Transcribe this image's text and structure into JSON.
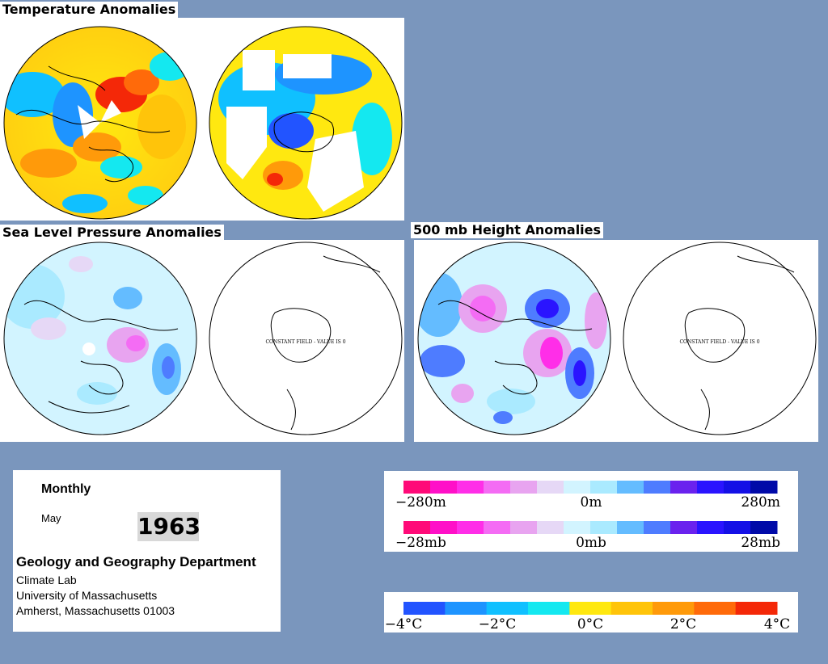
{
  "panels": {
    "temperature": {
      "title": "Temperature Anomalies"
    },
    "slp": {
      "title": "Sea Level Pressure Anomalies",
      "constant_label": "CONSTANT FIELD - VALUE IS 0"
    },
    "height": {
      "title": "500 mb Height Anomalies",
      "constant_label": "CONSTANT FIELD - VALUE IS 0"
    }
  },
  "info": {
    "period": "Monthly",
    "month": "May",
    "year": "1963",
    "department": "Geology and Geography Department",
    "lines": [
      "Climate Lab",
      "University of Massachusetts",
      "Amherst, Massachusetts 01003"
    ]
  },
  "legends": {
    "height": {
      "labels": [
        "−280m",
        "0m",
        "280m"
      ]
    },
    "pressure": {
      "labels": [
        "−28mb",
        "0mb",
        "28mb"
      ]
    },
    "temperature": {
      "labels": [
        "−4°C",
        "−2°C",
        "0°C",
        "2°C",
        "4°C"
      ]
    },
    "anomaly_colors": [
      "#ff0a78",
      "#ff10c8",
      "#ff2ee8",
      "#f46cf4",
      "#e8a4f0",
      "#e6d8f6",
      "#d2f4ff",
      "#aaeaff",
      "#64bcff",
      "#4e7cff",
      "#6a22ee",
      "#2a14ff",
      "#1410e6",
      "#000aa8"
    ],
    "temp_colors": [
      "#2254ff",
      "#1e94ff",
      "#10c0ff",
      "#14e8f0",
      "#ffe810",
      "#ffc40a",
      "#ff9a0a",
      "#ff6a0a",
      "#f42808"
    ]
  }
}
